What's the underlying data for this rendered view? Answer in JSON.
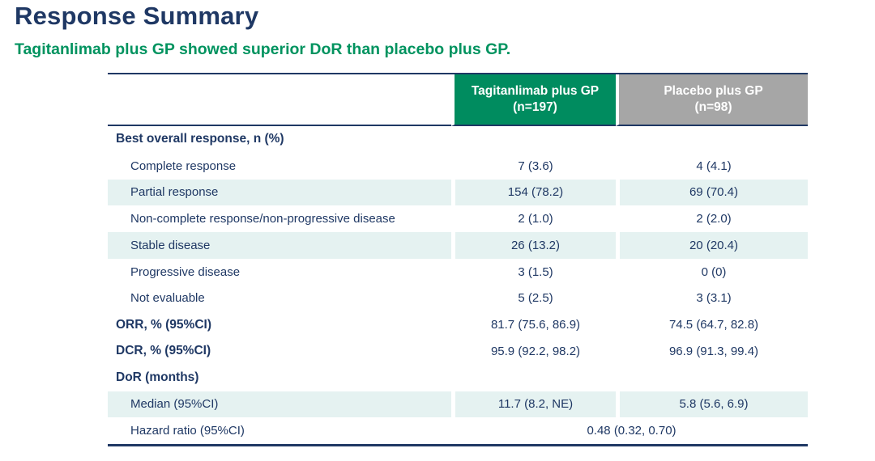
{
  "page": {
    "title": "Response Summary",
    "subtitle": "Tagitanlimab plus GP showed superior DoR than placebo plus GP."
  },
  "colors": {
    "title_navy": "#1F3864",
    "subtitle_green": "#00935F",
    "arm1_header_green": "#008C5F",
    "arm2_header_gray": "#A6A6A6",
    "stripe_teal": "#E5F2F1",
    "table_text_navy": "#1F3864"
  },
  "table": {
    "columns": [
      {
        "label": "Tagitanlimab plus GP",
        "n": "(n=197)"
      },
      {
        "label": "Placebo plus GP",
        "n": "(n=98)"
      }
    ],
    "rows": [
      {
        "label": "Best overall response, n (%)",
        "style": "section",
        "striped": false,
        "values": [
          "",
          ""
        ]
      },
      {
        "label": "Complete response",
        "style": "sub",
        "striped": false,
        "values": [
          "7 (3.6)",
          "4 (4.1)"
        ]
      },
      {
        "label": "Partial response",
        "style": "sub",
        "striped": true,
        "values": [
          "154 (78.2)",
          "69 (70.4)"
        ]
      },
      {
        "label": "Non-complete response/non-progressive disease",
        "style": "sub",
        "striped": false,
        "values": [
          "2 (1.0)",
          "2 (2.0)"
        ]
      },
      {
        "label": "Stable disease",
        "style": "sub",
        "striped": true,
        "values": [
          "26 (13.2)",
          "20 (20.4)"
        ]
      },
      {
        "label": "Progressive disease",
        "style": "sub",
        "striped": false,
        "values": [
          "3 (1.5)",
          "0 (0)"
        ]
      },
      {
        "label": "Not evaluable",
        "style": "sub",
        "striped": false,
        "values": [
          "5 (2.5)",
          "3 (3.1)"
        ]
      },
      {
        "label": "ORR, % (95%CI)",
        "style": "section",
        "striped": false,
        "values": [
          "81.7 (75.6, 86.9)",
          "74.5 (64.7, 82.8)"
        ]
      },
      {
        "label": "DCR, % (95%CI)",
        "style": "section",
        "striped": false,
        "values": [
          "95.9 (92.2, 98.2)",
          "96.9 (91.3, 99.4)"
        ]
      },
      {
        "label": "DoR (months)",
        "style": "section",
        "striped": false,
        "values": [
          "",
          ""
        ]
      },
      {
        "label": "Median (95%CI)",
        "style": "sub",
        "striped": true,
        "values": [
          "11.7 (8.2, NE)",
          "5.8 (5.6, 6.9)"
        ]
      },
      {
        "label": "Hazard ratio (95%CI)",
        "style": "sub",
        "striped": false,
        "span": true,
        "values": [
          "0.48 (0.32, 0.70)"
        ]
      }
    ]
  }
}
